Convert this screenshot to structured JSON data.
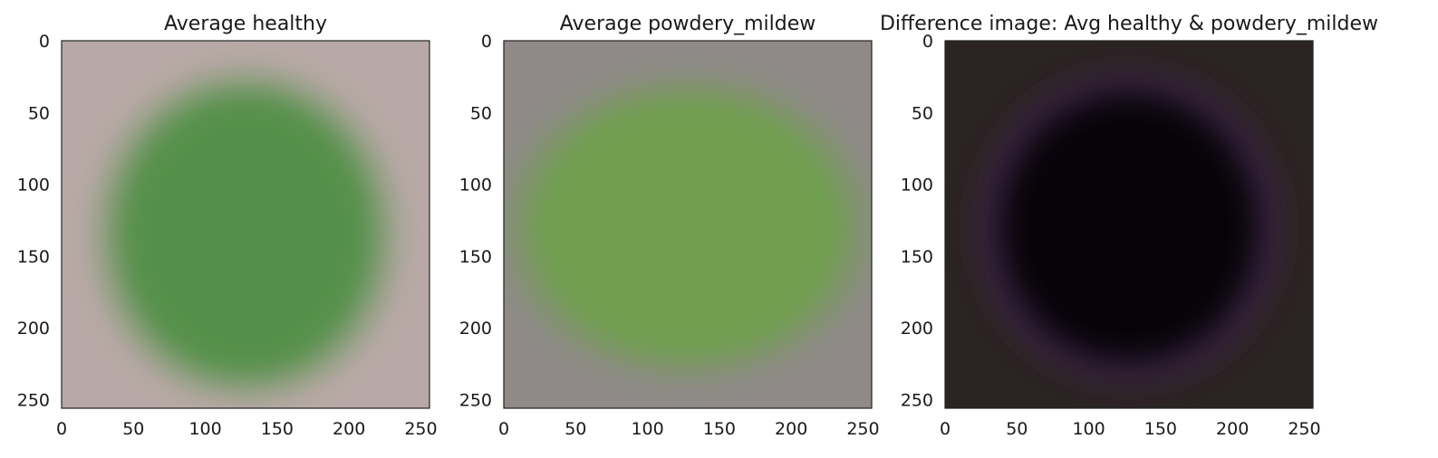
{
  "chart_data": [
    {
      "type": "heatmap",
      "title": "Average healthy",
      "xlabel": "",
      "ylabel": "",
      "xlim": [
        0,
        256
      ],
      "ylim": [
        256,
        0
      ],
      "xticks": [
        0,
        50,
        100,
        150,
        200,
        250
      ],
      "yticks": [
        0,
        50,
        100,
        150,
        200,
        250
      ],
      "grid": false,
      "image": {
        "background": "#b8a9a6",
        "blob_color": "#4f8f45",
        "blob_center": [
          128,
          135
        ],
        "blob_radius": [
          90,
          100
        ]
      }
    },
    {
      "type": "heatmap",
      "title": "Average powdery_mildew",
      "xlabel": "",
      "ylabel": "",
      "xlim": [
        0,
        256
      ],
      "ylim": [
        256,
        0
      ],
      "xticks": [
        0,
        50,
        100,
        150,
        200,
        250
      ],
      "yticks": [
        0,
        50,
        100,
        150,
        200,
        250
      ],
      "grid": false,
      "image": {
        "background": "#8f8a88",
        "blob_color": "#6ea04b",
        "blob_center": [
          128,
          130
        ],
        "blob_radius": [
          110,
          92
        ]
      }
    },
    {
      "type": "heatmap",
      "title": "Difference image: Avg healthy & powdery_mildew",
      "xlabel": "",
      "ylabel": "",
      "xlim": [
        0,
        256
      ],
      "ylim": [
        256,
        0
      ],
      "xticks": [
        0,
        50,
        100,
        150,
        200,
        250
      ],
      "yticks": [
        0,
        50,
        100,
        150,
        200,
        250
      ],
      "grid": false,
      "image": {
        "background": "#2b2422",
        "ring_color": "#4a2c5a",
        "blob_color": "#050206",
        "blob_center": [
          128,
          130
        ],
        "blob_radius": [
          92,
          96
        ]
      }
    }
  ],
  "colors": {
    "axis": "#222222",
    "text": "#1a1a1a"
  }
}
